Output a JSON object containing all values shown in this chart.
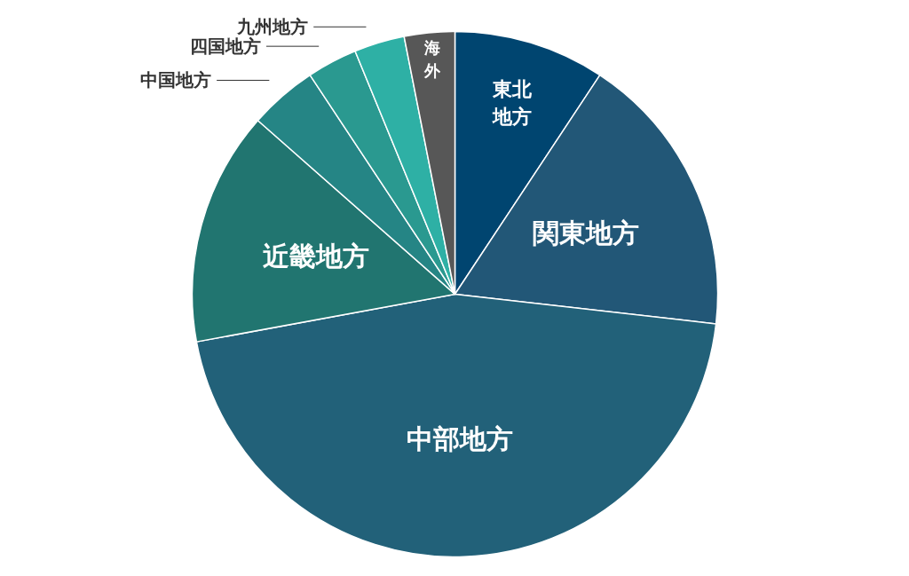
{
  "chart_data": {
    "type": "pie",
    "categories": [
      "東北地方",
      "関東地方",
      "中部地方",
      "近畿地方",
      "中国地方",
      "四国地方",
      "九州地方",
      "海外"
    ],
    "values": [
      9.3,
      17.5,
      45.3,
      14.4,
      4.2,
      3.1,
      3.1,
      3.1
    ],
    "colors": [
      "#004570",
      "#225777",
      "#226179",
      "#217570",
      "#258585",
      "#2a9990",
      "#2eb0a5",
      "#575757"
    ]
  }
}
